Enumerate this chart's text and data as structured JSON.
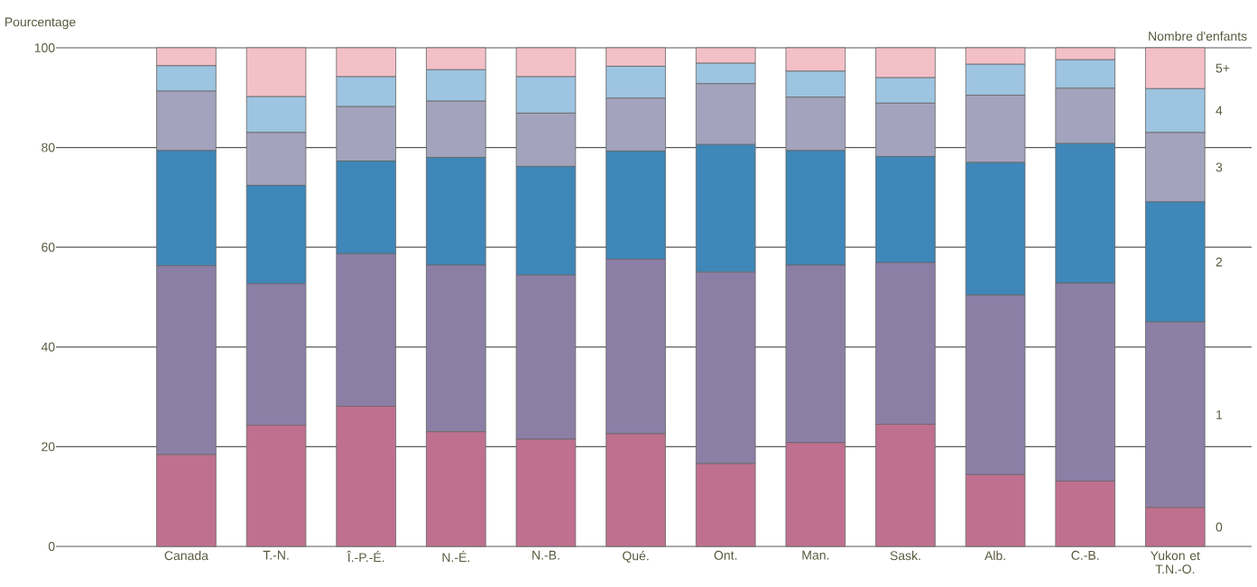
{
  "chart_data": {
    "type": "bar",
    "stacked": true,
    "ylabel": "Pourcentage",
    "legend_title": "Nombre d'enfants",
    "categories": [
      "Canada",
      "T.-N.",
      "Î.-P.-É.",
      "N.-É.",
      "N.-B.",
      "Qué.",
      "Ont.",
      "Man.",
      "Sask.",
      "Alb.",
      "C.-B.",
      "Yukon et T.N.-O."
    ],
    "series": [
      {
        "name": "0",
        "color": "#c0708f",
        "values": [
          18.4,
          24.3,
          28.1,
          23.0,
          21.5,
          22.6,
          16.6,
          20.8,
          24.5,
          14.4,
          13.1,
          7.8
        ]
      },
      {
        "name": "1",
        "color": "#8c7fa6",
        "values": [
          37.9,
          28.4,
          30.6,
          33.4,
          32.9,
          35.0,
          38.4,
          35.6,
          32.4,
          36.0,
          39.7,
          37.2
        ]
      },
      {
        "name": "2",
        "color": "#3f87b8",
        "values": [
          23.1,
          19.7,
          18.6,
          21.6,
          21.8,
          21.7,
          25.6,
          23.0,
          21.3,
          26.6,
          28.0,
          24.1
        ]
      },
      {
        "name": "3",
        "color": "#a3a3bd",
        "values": [
          11.9,
          10.6,
          10.9,
          11.3,
          10.7,
          10.6,
          12.2,
          10.7,
          10.7,
          13.5,
          11.1,
          13.9
        ]
      },
      {
        "name": "4",
        "color": "#9dc4e0",
        "values": [
          5.1,
          7.2,
          6.0,
          6.3,
          7.3,
          6.4,
          4.1,
          5.2,
          5.1,
          6.2,
          5.7,
          8.8
        ]
      },
      {
        "name": "5+",
        "color": "#f4c0c8",
        "values": [
          3.6,
          9.8,
          5.8,
          4.4,
          5.8,
          3.7,
          3.1,
          4.7,
          6.0,
          3.3,
          2.4,
          8.2
        ]
      }
    ],
    "ylim": [
      0,
      100
    ],
    "yticks": [
      0,
      20,
      40,
      60,
      80,
      100
    ],
    "grid": "y"
  }
}
